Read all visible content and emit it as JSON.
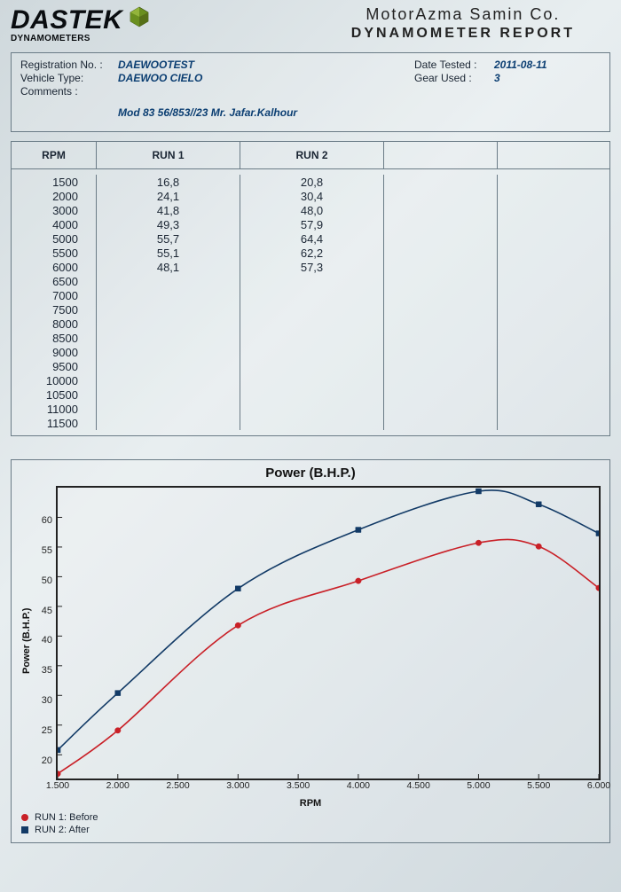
{
  "header": {
    "logo_main": "DASTEK",
    "logo_sub": "DYNAMOMETERS",
    "company": "MotorAzma Samin Co.",
    "report_title": "DYNAMOMETER REPORT"
  },
  "info": {
    "registration_label": "Registration No. :",
    "registration_value": "DAEWOOTEST",
    "vehicle_label": "Vehicle Type:",
    "vehicle_value": "DAEWOO CIELO",
    "comments_label": "Comments :",
    "comments_value": "Mod 83  56/853//23  Mr. Jafar.Kalhour",
    "date_label": "Date Tested :",
    "date_value": "2011-08-11",
    "gear_label": "Gear Used :",
    "gear_value": "3"
  },
  "table": {
    "headers": {
      "rpm": "RPM",
      "run1": "RUN 1",
      "run2": "RUN 2"
    },
    "rows": [
      {
        "rpm": "1500",
        "run1": "16,8",
        "run2": "20,8"
      },
      {
        "rpm": "2000",
        "run1": "24,1",
        "run2": "30,4"
      },
      {
        "rpm": "3000",
        "run1": "41,8",
        "run2": "48,0"
      },
      {
        "rpm": "4000",
        "run1": "49,3",
        "run2": "57,9"
      },
      {
        "rpm": "5000",
        "run1": "55,7",
        "run2": "64,4"
      },
      {
        "rpm": "5500",
        "run1": "55,1",
        "run2": "62,2"
      },
      {
        "rpm": "6000",
        "run1": "48,1",
        "run2": "57,3"
      },
      {
        "rpm": "6500",
        "run1": "",
        "run2": ""
      },
      {
        "rpm": "7000",
        "run1": "",
        "run2": ""
      },
      {
        "rpm": "7500",
        "run1": "",
        "run2": ""
      },
      {
        "rpm": "8000",
        "run1": "",
        "run2": ""
      },
      {
        "rpm": "8500",
        "run1": "",
        "run2": ""
      },
      {
        "rpm": "9000",
        "run1": "",
        "run2": ""
      },
      {
        "rpm": "9500",
        "run1": "",
        "run2": ""
      },
      {
        "rpm": "10000",
        "run1": "",
        "run2": ""
      },
      {
        "rpm": "10500",
        "run1": "",
        "run2": ""
      },
      {
        "rpm": "11000",
        "run1": "",
        "run2": ""
      },
      {
        "rpm": "11500",
        "run1": "",
        "run2": ""
      }
    ]
  },
  "chart": {
    "title": "Power (B.H.P.)",
    "type": "line",
    "xlabel": "RPM",
    "ylabel": "Power (B.H.P.)",
    "xlim": [
      1500,
      6000
    ],
    "ylim": [
      16,
      65
    ],
    "xticks": [
      {
        "v": 1500,
        "label": "1.500"
      },
      {
        "v": 2000,
        "label": "2.000"
      },
      {
        "v": 2500,
        "label": "2.500"
      },
      {
        "v": 3000,
        "label": "3.000"
      },
      {
        "v": 3500,
        "label": "3.500"
      },
      {
        "v": 4000,
        "label": "4.000"
      },
      {
        "v": 4500,
        "label": "4.500"
      },
      {
        "v": 5000,
        "label": "5.000"
      },
      {
        "v": 5500,
        "label": "5.500"
      },
      {
        "v": 6000,
        "label": "6.000"
      }
    ],
    "yticks": [
      {
        "v": 20,
        "label": "20"
      },
      {
        "v": 25,
        "label": "25"
      },
      {
        "v": 30,
        "label": "30"
      },
      {
        "v": 35,
        "label": "35"
      },
      {
        "v": 40,
        "label": "40"
      },
      {
        "v": 45,
        "label": "45"
      },
      {
        "v": 50,
        "label": "50"
      },
      {
        "v": 55,
        "label": "55"
      },
      {
        "v": 60,
        "label": "60"
      }
    ],
    "series": [
      {
        "name": "RUN 1: Before",
        "color": "#c92027",
        "marker": "circle",
        "marker_fill": "#c92027",
        "line_width": 1.6,
        "points": [
          {
            "x": 1500,
            "y": 16.8
          },
          {
            "x": 2000,
            "y": 24.1
          },
          {
            "x": 3000,
            "y": 41.8
          },
          {
            "x": 4000,
            "y": 49.3
          },
          {
            "x": 5000,
            "y": 55.7
          },
          {
            "x": 5500,
            "y": 55.1
          },
          {
            "x": 6000,
            "y": 48.1
          }
        ]
      },
      {
        "name": "RUN 2: After",
        "color": "#123a66",
        "marker": "square",
        "marker_fill": "#123a66",
        "line_width": 1.6,
        "points": [
          {
            "x": 1500,
            "y": 20.8
          },
          {
            "x": 2000,
            "y": 30.4
          },
          {
            "x": 3000,
            "y": 48.0
          },
          {
            "x": 4000,
            "y": 57.9
          },
          {
            "x": 5000,
            "y": 64.4
          },
          {
            "x": 5500,
            "y": 62.2
          },
          {
            "x": 6000,
            "y": 57.3
          }
        ]
      }
    ],
    "legend": [
      {
        "color": "#c92027",
        "marker": "circle",
        "label": "RUN 1: Before"
      },
      {
        "color": "#123a66",
        "marker": "square",
        "label": "RUN 2: After"
      }
    ],
    "background_color": "transparent",
    "axis_color": "#222222",
    "tick_fontsize": 11,
    "label_fontsize": 11,
    "title_fontsize": 15
  },
  "colors": {
    "page_bg_a": "#cfd8dc",
    "page_bg_b": "#e8eef0",
    "border": "#6a7b86",
    "value_text": "#0b3e72",
    "logo_accent": "#6a8f1f"
  }
}
